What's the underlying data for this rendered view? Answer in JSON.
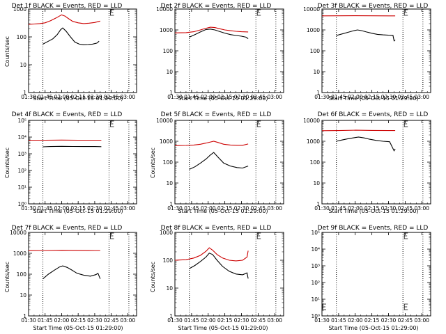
{
  "panels": [
    {
      "title": "Det 1f BLACK = Events, RED = LLD",
      "ylabel": "Counts/sec",
      "xlabel": "Start Time (05-Oct-15 01:29:00)"
    },
    {
      "title": "Det 2f BLACK = Events, RED = LLD",
      "ylabel": "",
      "xlabel": "Start Time (05-Oct-15 01:29:00)"
    },
    {
      "title": "Det 3f BLACK = Events, RED = LLD",
      "ylabel": "",
      "xlabel": "Start Time (05-Oct-15 01:29:00)"
    },
    {
      "title": "Det 4f BLACK = Events, RED = LLD",
      "ylabel": "Counts/sec",
      "xlabel": "Start Time (05-Oct-15 01:29:00)"
    },
    {
      "title": "Det 5f BLACK = Events, RED = LLD",
      "ylabel": "Counts/sec",
      "xlabel": "Start Time (05-Oct-15 01:29:00)"
    },
    {
      "title": "Det 6f BLACK = Events, RED = LLD",
      "ylabel": "",
      "xlabel": "Start Time (05-Oct-15 01:29:00)"
    },
    {
      "title": "Det 7f BLACK = Events, RED = LLD",
      "ylabel": "Counts/sec",
      "xlabel": "Start Time (05-Oct-15 01:29:00)"
    },
    {
      "title": "Det 8f BLACK = Events, RED = LLD",
      "ylabel": "Counts/sec",
      "xlabel": "Start Time (05-Oct-15 01:29:00)"
    },
    {
      "title": "Det 9f BLACK = Events, RED = LLD",
      "ylabel": "",
      "xlabel": "Start Time (05-Oct-15 01:29:00)"
    }
  ],
  "chart_data": [
    {
      "type": "line",
      "title": "Det 1f BLACK = Events, RED = LLD",
      "ylabel": "Counts/sec",
      "xlabel": "Start Time (05-Oct-15 01:29:00)",
      "xlim": [
        "01:30",
        "03:08"
      ],
      "xticks": [
        "01:30",
        "01:45",
        "02:00",
        "02:15",
        "02:30",
        "02:45",
        "03:00"
      ],
      "yscale": "log",
      "ylim": [
        1,
        1000
      ],
      "yticks": [
        "1",
        "10",
        "100",
        "1000"
      ],
      "markers": [
        "01:43",
        "02:43",
        "03:01"
      ],
      "series": [
        {
          "color": "#000000",
          "x": [
            "01:43",
            "01:48",
            "01:52",
            "01:56",
            "01:59",
            "02:01",
            "02:04",
            "02:08",
            "02:12",
            "02:16",
            "02:20",
            "02:24",
            "02:28",
            "02:32",
            "02:34"
          ],
          "y": [
            55,
            70,
            85,
            120,
            180,
            210,
            160,
            100,
            65,
            55,
            52,
            53,
            55,
            60,
            70
          ]
        },
        {
          "color": "#cc0000",
          "x": [
            "01:30",
            "01:35",
            "01:40",
            "01:45",
            "01:50",
            "01:55",
            "02:00",
            "02:03",
            "02:06",
            "02:10",
            "02:15",
            "02:20",
            "02:25",
            "02:30",
            "02:35"
          ],
          "y": [
            280,
            290,
            300,
            320,
            380,
            480,
            620,
            560,
            460,
            360,
            320,
            300,
            310,
            330,
            370
          ]
        }
      ]
    },
    {
      "type": "line",
      "title": "Det 2f BLACK = Events, RED = LLD",
      "ylabel": "",
      "xlabel": "Start Time (05-Oct-15 01:29:00)",
      "xlim": [
        "01:30",
        "03:08"
      ],
      "xticks": [
        "01:30",
        "01:45",
        "02:00",
        "02:15",
        "02:30",
        "02:45",
        "03:00"
      ],
      "yscale": "log",
      "ylim": [
        1,
        10000
      ],
      "yticks": [
        "1",
        "10",
        "100",
        "1000",
        "10000"
      ],
      "markers": [
        "01:43",
        "02:43",
        "03:01"
      ],
      "series": [
        {
          "color": "#000000",
          "x": [
            "01:43",
            "01:48",
            "01:53",
            "01:58",
            "02:02",
            "02:06",
            "02:10",
            "02:15",
            "02:20",
            "02:25",
            "02:30",
            "02:34",
            "02:36"
          ],
          "y": [
            450,
            600,
            800,
            1050,
            1100,
            1000,
            850,
            700,
            600,
            540,
            500,
            450,
            380
          ]
        },
        {
          "color": "#cc0000",
          "x": [
            "01:30",
            "01:40",
            "01:47",
            "01:53",
            "01:58",
            "02:02",
            "02:06",
            "02:10",
            "02:15",
            "02:20",
            "02:25",
            "02:30",
            "02:36"
          ],
          "y": [
            720,
            740,
            820,
            1000,
            1200,
            1350,
            1300,
            1150,
            1000,
            920,
            860,
            820,
            800
          ]
        }
      ]
    },
    {
      "type": "line",
      "title": "Det 3f BLACK = Events, RED = LLD",
      "ylabel": "",
      "xlabel": "Start Time (05-Oct-15 01:29:00)",
      "xlim": [
        "01:30",
        "03:08"
      ],
      "xticks": [
        "01:30",
        "01:45",
        "02:00",
        "02:15",
        "02:30",
        "02:45",
        "03:00"
      ],
      "yscale": "log",
      "ylim": [
        1,
        10000
      ],
      "yticks": [
        "1",
        "10",
        "100",
        "1000",
        "10000"
      ],
      "markers": [
        "01:43",
        "02:43",
        "03:01"
      ],
      "series": [
        {
          "color": "#000000",
          "x": [
            "01:43",
            "01:48",
            "01:53",
            "01:58",
            "02:02",
            "02:06",
            "02:10",
            "02:15",
            "02:20",
            "02:25",
            "02:30",
            "02:34",
            "02:35",
            "02:36"
          ],
          "y": [
            540,
            640,
            760,
            900,
            1000,
            920,
            800,
            690,
            610,
            580,
            560,
            550,
            300,
            330
          ]
        },
        {
          "color": "#cc0000",
          "x": [
            "01:30",
            "01:45",
            "02:00",
            "02:15",
            "02:30",
            "02:36"
          ],
          "y": [
            4700,
            4750,
            4800,
            4750,
            4700,
            4700
          ]
        }
      ]
    },
    {
      "type": "line",
      "title": "Det 4f BLACK = Events, RED = LLD",
      "ylabel": "Counts/sec",
      "xlabel": "Start Time (05-Oct-15 01:29:00)",
      "xlim": [
        "01:30",
        "03:08"
      ],
      "xticks": [
        "01:30",
        "01:45",
        "02:00",
        "02:15",
        "02:30",
        "02:45",
        "03:00"
      ],
      "yscale": "log",
      "ylim": [
        1,
        100000
      ],
      "yticks": [
        "10⁰",
        "10¹",
        "10²",
        "10³",
        "10⁴",
        "10⁵"
      ],
      "markers": [
        "01:43",
        "02:43",
        "03:01"
      ],
      "series": [
        {
          "color": "#000000",
          "x": [
            "01:43",
            "01:50",
            "02:00",
            "02:10",
            "02:20",
            "02:30",
            "02:36"
          ],
          "y": [
            2600,
            2700,
            2800,
            2750,
            2700,
            2700,
            2650
          ]
        },
        {
          "color": "#cc0000",
          "x": [
            "01:30",
            "01:45",
            "02:00",
            "02:15",
            "02:30",
            "02:36"
          ],
          "y": [
            6500,
            6500,
            6600,
            6500,
            6500,
            6500
          ]
        }
      ]
    },
    {
      "type": "line",
      "title": "Det 5f BLACK = Events, RED = LLD",
      "ylabel": "Counts/sec",
      "xlabel": "Start Time (05-Oct-15 01:29:00)",
      "xlim": [
        "01:30",
        "03:08"
      ],
      "xticks": [
        "01:30",
        "01:45",
        "02:00",
        "02:15",
        "02:30",
        "02:45",
        "03:00"
      ],
      "yscale": "log",
      "ylim": [
        1,
        10000
      ],
      "yticks": [
        "1",
        "10",
        "100",
        "1000",
        "10000"
      ],
      "markers": [
        "01:43",
        "02:43",
        "03:01"
      ],
      "series": [
        {
          "color": "#000000",
          "x": [
            "01:43",
            "01:48",
            "01:53",
            "01:58",
            "02:02",
            "02:05",
            "02:09",
            "02:14",
            "02:20",
            "02:26",
            "02:31",
            "02:36"
          ],
          "y": [
            45,
            60,
            90,
            140,
            220,
            290,
            170,
            90,
            65,
            55,
            52,
            65
          ]
        },
        {
          "color": "#cc0000",
          "x": [
            "01:30",
            "01:40",
            "01:47",
            "01:53",
            "01:58",
            "02:02",
            "02:05",
            "02:09",
            "02:14",
            "02:20",
            "02:26",
            "02:31",
            "02:36"
          ],
          "y": [
            620,
            630,
            660,
            720,
            820,
            920,
            1000,
            870,
            720,
            660,
            640,
            640,
            740
          ]
        }
      ]
    },
    {
      "type": "line",
      "title": "Det 6f BLACK = Events, RED = LLD",
      "ylabel": "",
      "xlabel": "Start Time (05-Oct-15 01:29:00)",
      "xlim": [
        "01:30",
        "03:08"
      ],
      "xticks": [
        "01:30",
        "01:45",
        "02:00",
        "02:15",
        "02:30",
        "02:45",
        "03:00"
      ],
      "yscale": "log",
      "ylim": [
        1,
        10000
      ],
      "yticks": [
        "1",
        "10",
        "100",
        "1000",
        "10000"
      ],
      "markers": [
        "01:43",
        "02:43",
        "03:01"
      ],
      "series": [
        {
          "color": "#000000",
          "x": [
            "01:43",
            "01:48",
            "01:53",
            "01:58",
            "02:03",
            "02:08",
            "02:13",
            "02:19",
            "02:25",
            "02:31",
            "02:35",
            "02:36"
          ],
          "y": [
            1000,
            1150,
            1300,
            1450,
            1600,
            1450,
            1250,
            1100,
            1000,
            950,
            350,
            430
          ]
        },
        {
          "color": "#cc0000",
          "x": [
            "01:30",
            "01:45",
            "02:00",
            "02:15",
            "02:30",
            "02:36"
          ],
          "y": [
            3200,
            3250,
            3400,
            3300,
            3250,
            3250
          ]
        }
      ]
    },
    {
      "type": "line",
      "title": "Det 7f BLACK = Events, RED = LLD",
      "ylabel": "Counts/sec",
      "xlabel": "Start Time (05-Oct-15 01:29:00)",
      "xlim": [
        "01:30",
        "03:08"
      ],
      "xticks": [
        "01:30",
        "01:45",
        "02:00",
        "02:15",
        "02:30",
        "02:45",
        "03:00"
      ],
      "yscale": "log",
      "ylim": [
        1,
        10000
      ],
      "yticks": [
        "1",
        "10",
        "100",
        "1000",
        "10000"
      ],
      "markers": [
        "01:43",
        "02:43",
        "03:01"
      ],
      "series": [
        {
          "color": "#000000",
          "x": [
            "01:43",
            "01:48",
            "01:53",
            "01:58",
            "02:01",
            "02:05",
            "02:09",
            "02:14",
            "02:20",
            "02:26",
            "02:31",
            "02:33",
            "02:35"
          ],
          "y": [
            60,
            100,
            150,
            220,
            250,
            210,
            160,
            110,
            90,
            80,
            95,
            110,
            60
          ]
        },
        {
          "color": "#cc0000",
          "x": [
            "01:30",
            "01:45",
            "02:00",
            "02:15",
            "02:30",
            "02:35"
          ],
          "y": [
            1350,
            1360,
            1400,
            1380,
            1360,
            1360
          ]
        }
      ]
    },
    {
      "type": "line",
      "title": "Det 8f BLACK = Events, RED = LLD",
      "ylabel": "Counts/sec",
      "xlabel": "Start Time (05-Oct-15 01:29:00)",
      "xlim": [
        "01:30",
        "03:08"
      ],
      "xticks": [
        "01:30",
        "01:45",
        "02:00",
        "02:15",
        "02:30",
        "02:45",
        "03:00"
      ],
      "yscale": "log",
      "ylim": [
        1,
        1000
      ],
      "yticks": [
        "1",
        "10",
        "100",
        "1000"
      ],
      "markers": [
        "01:43",
        "02:43",
        "03:01"
      ],
      "series": [
        {
          "color": "#000000",
          "x": [
            "01:43",
            "01:48",
            "01:53",
            "01:58",
            "02:01",
            "02:04",
            "02:08",
            "02:13",
            "02:19",
            "02:25",
            "02:31",
            "02:35",
            "02:36"
          ],
          "y": [
            50,
            65,
            90,
            130,
            180,
            160,
            100,
            60,
            40,
            32,
            30,
            35,
            22
          ]
        },
        {
          "color": "#cc0000",
          "x": [
            "01:30",
            "01:40",
            "01:47",
            "01:53",
            "01:58",
            "02:01",
            "02:04",
            "02:08",
            "02:13",
            "02:19",
            "02:25",
            "02:31",
            "02:35",
            "02:36"
          ],
          "y": [
            100,
            105,
            120,
            150,
            210,
            280,
            230,
            160,
            120,
            100,
            95,
            100,
            130,
            220
          ]
        }
      ]
    },
    {
      "type": "line",
      "title": "Det 9f BLACK = Events, RED = LLD",
      "ylabel": "",
      "xlabel": "Start Time (05-Oct-15 01:29:00)",
      "xlim": [
        "01:30",
        "03:08"
      ],
      "xticks": [
        "01:30",
        "01:45",
        "02:00",
        "02:15",
        "02:30",
        "02:45",
        "03:00"
      ],
      "yscale": "log",
      "ylim": [
        1,
        100000
      ],
      "yticks": [
        "10⁰",
        "10¹",
        "10²",
        "10³",
        "10⁴",
        "10⁵"
      ],
      "markers": [
        "01:43",
        "02:43",
        "03:01"
      ],
      "series": []
    }
  ]
}
